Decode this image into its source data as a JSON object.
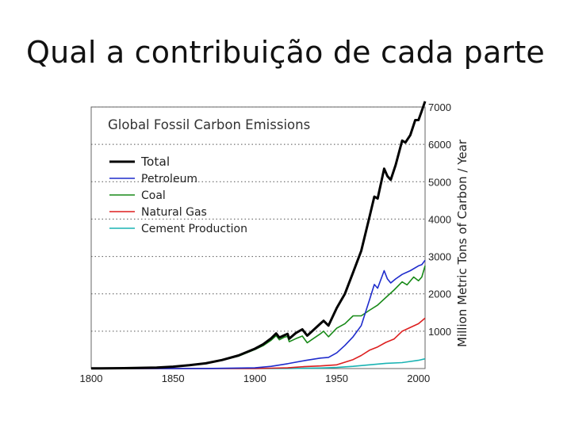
{
  "slide": {
    "title": "Qual a contribuição de cada parte"
  },
  "chart_data": {
    "type": "line",
    "title": "Global Fossil Carbon Emissions",
    "xlabel": "",
    "ylabel": "Million Metric Tons of Carbon / Year",
    "xlim": [
      1800,
      2004
    ],
    "ylim": [
      0,
      7000
    ],
    "x_ticks": [
      1800,
      1850,
      1900,
      1950,
      2000
    ],
    "y_ticks": [
      1000,
      2000,
      3000,
      4000,
      5000,
      6000,
      7000
    ],
    "grid": "horizontal-dotted",
    "legend_position": "top-left",
    "series": [
      {
        "name": "Total",
        "color": "#000000",
        "points": [
          [
            1800,
            5
          ],
          [
            1820,
            10
          ],
          [
            1840,
            25
          ],
          [
            1850,
            50
          ],
          [
            1860,
            90
          ],
          [
            1870,
            140
          ],
          [
            1880,
            230
          ],
          [
            1890,
            350
          ],
          [
            1900,
            530
          ],
          [
            1905,
            650
          ],
          [
            1910,
            810
          ],
          [
            1913,
            940
          ],
          [
            1915,
            830
          ],
          [
            1918,
            890
          ],
          [
            1920,
            930
          ],
          [
            1921,
            800
          ],
          [
            1925,
            950
          ],
          [
            1929,
            1050
          ],
          [
            1932,
            880
          ],
          [
            1935,
            1000
          ],
          [
            1940,
            1200
          ],
          [
            1942,
            1280
          ],
          [
            1945,
            1150
          ],
          [
            1950,
            1620
          ],
          [
            1955,
            2000
          ],
          [
            1960,
            2570
          ],
          [
            1965,
            3150
          ],
          [
            1970,
            4050
          ],
          [
            1973,
            4600
          ],
          [
            1975,
            4550
          ],
          [
            1979,
            5350
          ],
          [
            1981,
            5150
          ],
          [
            1983,
            5050
          ],
          [
            1986,
            5450
          ],
          [
            1990,
            6100
          ],
          [
            1992,
            6050
          ],
          [
            1995,
            6250
          ],
          [
            1998,
            6650
          ],
          [
            2000,
            6650
          ],
          [
            2002,
            6900
          ],
          [
            2004,
            7150
          ]
        ]
      },
      {
        "name": "Petroleum",
        "color": "#1f2ccc",
        "points": [
          [
            1800,
            0
          ],
          [
            1870,
            2
          ],
          [
            1900,
            20
          ],
          [
            1910,
            60
          ],
          [
            1920,
            130
          ],
          [
            1930,
            210
          ],
          [
            1940,
            280
          ],
          [
            1945,
            300
          ],
          [
            1950,
            420
          ],
          [
            1955,
            620
          ],
          [
            1960,
            850
          ],
          [
            1965,
            1150
          ],
          [
            1970,
            1830
          ],
          [
            1973,
            2250
          ],
          [
            1975,
            2150
          ],
          [
            1979,
            2620
          ],
          [
            1981,
            2400
          ],
          [
            1983,
            2290
          ],
          [
            1986,
            2400
          ],
          [
            1990,
            2520
          ],
          [
            1995,
            2620
          ],
          [
            2000,
            2750
          ],
          [
            2002,
            2780
          ],
          [
            2004,
            2900
          ]
        ]
      },
      {
        "name": "Coal",
        "color": "#198a19",
        "points": [
          [
            1800,
            5
          ],
          [
            1820,
            10
          ],
          [
            1840,
            25
          ],
          [
            1850,
            50
          ],
          [
            1860,
            90
          ],
          [
            1870,
            140
          ],
          [
            1880,
            225
          ],
          [
            1890,
            330
          ],
          [
            1900,
            510
          ],
          [
            1905,
            610
          ],
          [
            1910,
            760
          ],
          [
            1913,
            880
          ],
          [
            1915,
            770
          ],
          [
            1918,
            840
          ],
          [
            1920,
            860
          ],
          [
            1921,
            720
          ],
          [
            1925,
            800
          ],
          [
            1929,
            870
          ],
          [
            1932,
            690
          ],
          [
            1935,
            780
          ],
          [
            1940,
            930
          ],
          [
            1942,
            1000
          ],
          [
            1945,
            850
          ],
          [
            1950,
            1080
          ],
          [
            1955,
            1200
          ],
          [
            1960,
            1410
          ],
          [
            1965,
            1410
          ],
          [
            1970,
            1560
          ],
          [
            1975,
            1700
          ],
          [
            1980,
            1900
          ],
          [
            1985,
            2100
          ],
          [
            1990,
            2320
          ],
          [
            1993,
            2240
          ],
          [
            1997,
            2450
          ],
          [
            2000,
            2350
          ],
          [
            2002,
            2450
          ],
          [
            2004,
            2750
          ]
        ]
      },
      {
        "name": "Natural Gas",
        "color": "#dd1f1f",
        "points": [
          [
            1800,
            0
          ],
          [
            1900,
            0
          ],
          [
            1910,
            10
          ],
          [
            1920,
            20
          ],
          [
            1930,
            50
          ],
          [
            1940,
            70
          ],
          [
            1950,
            100
          ],
          [
            1955,
            170
          ],
          [
            1960,
            240
          ],
          [
            1965,
            350
          ],
          [
            1970,
            490
          ],
          [
            1975,
            580
          ],
          [
            1980,
            700
          ],
          [
            1985,
            790
          ],
          [
            1990,
            1000
          ],
          [
            1995,
            1100
          ],
          [
            2000,
            1200
          ],
          [
            2004,
            1350
          ]
        ]
      },
      {
        "name": "Cement Production",
        "color": "#1ab3b3",
        "points": [
          [
            1800,
            0
          ],
          [
            1920,
            0
          ],
          [
            1930,
            8
          ],
          [
            1940,
            15
          ],
          [
            1950,
            30
          ],
          [
            1960,
            60
          ],
          [
            1970,
            100
          ],
          [
            1980,
            140
          ],
          [
            1990,
            160
          ],
          [
            2000,
            220
          ],
          [
            2004,
            260
          ]
        ]
      }
    ]
  }
}
